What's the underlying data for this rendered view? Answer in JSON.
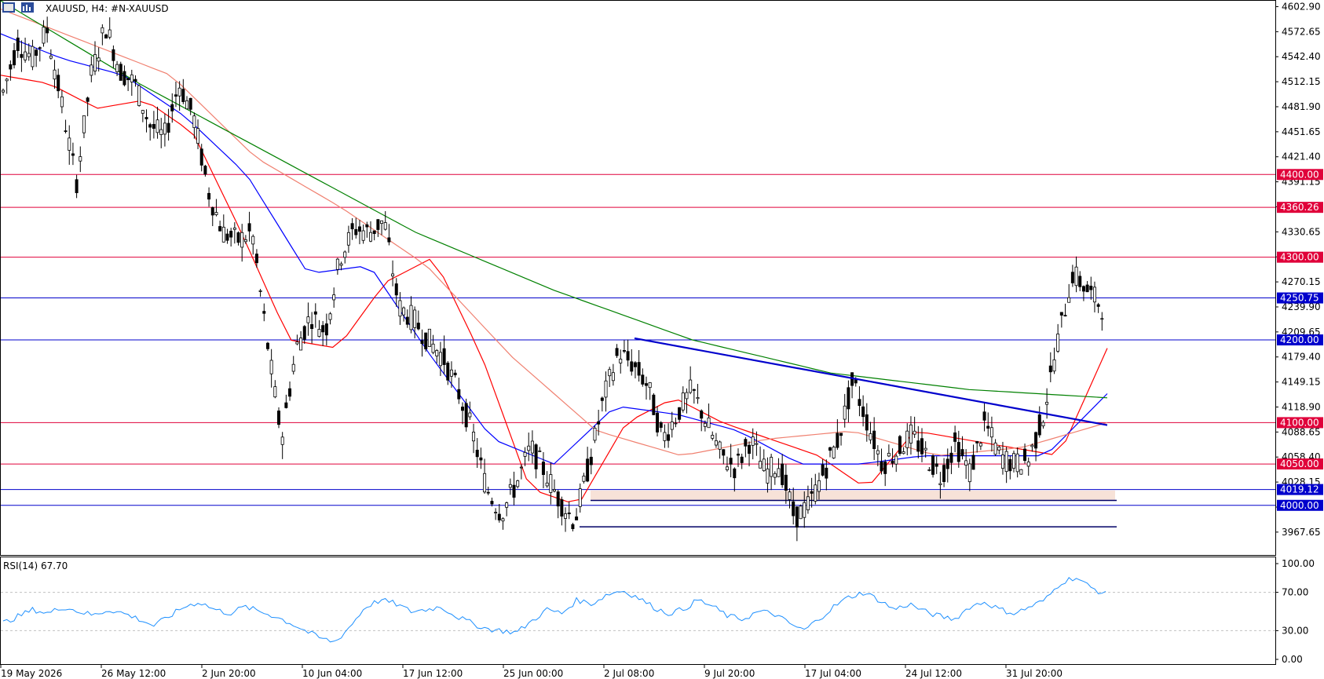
{
  "header": {
    "symbol": "XAUUSD",
    "timeframe": "H4:",
    "description": "#N-XAUUSD"
  },
  "rsi": {
    "label": "RSI(14) 67.70",
    "ticks": [
      "100.00",
      "70.00",
      "30.00",
      "0.00"
    ]
  },
  "chart_data": [
    {
      "type": "candlestick",
      "symbol": "XAUUSD",
      "timeframe": "H4",
      "ylim": [
        3940,
        4610
      ],
      "y_ticks": [
        4602.9,
        4572.65,
        4542.4,
        4512.15,
        4481.9,
        4451.65,
        4421.4,
        4391.15,
        4360.9,
        4330.65,
        4300.4,
        4270.15,
        4239.9,
        4209.65,
        4179.4,
        4149.15,
        4118.9,
        4088.65,
        4058.4,
        4028.15,
        3997.9,
        3967.65
      ],
      "x_ticks": [
        "19 May 2026",
        "26 May 12:00",
        "2 Jun 20:00",
        "10 Jun 04:00",
        "17 Jun 12:00",
        "25 Jun 00:00",
        "2 Jul 08:00",
        "9 Jul 20:00",
        "17 Jul 04:00",
        "24 Jul 12:00",
        "31 Jul 20:00"
      ],
      "price_path": [
        4500,
        4560,
        4540,
        4575,
        4485,
        4390,
        4520,
        4580,
        4525,
        4510,
        4460,
        4445,
        4510,
        4470,
        4380,
        4330,
        4320,
        4330,
        4200,
        4080,
        4190,
        4230,
        4210,
        4300,
        4335,
        4330,
        4345,
        4240,
        4225,
        4200,
        4180,
        4140,
        4090,
        4020,
        3990,
        4025,
        4070,
        4040,
        4005,
        3980,
        4050,
        4130,
        4185,
        4170,
        4145,
        4080,
        4110,
        4140,
        4100,
        4060,
        4045,
        4080,
        4040,
        4050,
        3985,
        4000,
        4040,
        4080,
        4150,
        4100,
        4050,
        4065,
        4085,
        4060,
        4035,
        4075,
        4040,
        4100,
        4060,
        4050,
        4055,
        4110,
        4200,
        4280,
        4260,
        4240
      ],
      "moving_averages": [
        {
          "color": "#ff0000",
          "path": [
            4520,
            4510,
            4480,
            4490,
            4450,
            4330,
            4200,
            4190,
            4270,
            4300,
            4180,
            4020,
            4000,
            4100,
            4130,
            4100,
            4080,
            4060,
            4020,
            4090,
            4080,
            4070,
            4060,
            4190
          ]
        },
        {
          "color": "#0000ff",
          "path": [
            4570,
            4540,
            4520,
            4470,
            4400,
            4280,
            4290,
            4180,
            4080,
            4050,
            4120,
            4110,
            4090,
            4050,
            4050,
            4060,
            4060,
            4060,
            4135
          ]
        },
        {
          "color": "#f08070",
          "path": [
            4600,
            4560,
            4520,
            4420,
            4360,
            4290,
            4180,
            4090,
            4060,
            4080,
            4090,
            4060,
            4070,
            4100
          ]
        },
        {
          "color": "#008000",
          "path": [
            4610,
            4510,
            4420,
            4330,
            4260,
            4200,
            4160,
            4140,
            4130
          ]
        }
      ],
      "price_levels": [
        {
          "value": 4400.0,
          "label": "4400.00",
          "color": "#e0003a"
        },
        {
          "value": 4360.26,
          "label": "4360.26",
          "color": "#e0003a"
        },
        {
          "value": 4300.0,
          "label": "4300.00",
          "color": "#e0003a"
        },
        {
          "value": 4250.75,
          "label": "4250.75",
          "color": "#0000cc"
        },
        {
          "value": 4200.0,
          "label": "4200.00",
          "color": "#0000cc"
        },
        {
          "value": 4100.0,
          "label": "4100.00",
          "color": "#e0003a"
        },
        {
          "value": 4050.0,
          "label": "4050.00",
          "color": "#e0003a"
        },
        {
          "value": 4019.12,
          "label": "4019.12",
          "color": "#0000cc"
        },
        {
          "value": 4000.0,
          "label": "4000.00",
          "color": "#0000cc"
        }
      ],
      "zone": {
        "from": 4006,
        "to": 4018,
        "color": "#f7e2d8"
      },
      "support_line": 3974,
      "trendline": {
        "from": 4202,
        "to": 4097,
        "color": "#0000cc"
      }
    },
    {
      "type": "line",
      "series": [
        {
          "name": "RSI(14)",
          "current": 67.7,
          "color": "#1e90ff"
        }
      ],
      "ylim": [
        0,
        100
      ],
      "levels": [
        70,
        30
      ],
      "path": [
        38,
        45,
        52,
        48,
        55,
        50,
        46,
        52,
        48,
        42,
        35,
        45,
        55,
        60,
        52,
        48,
        55,
        50,
        45,
        38,
        30,
        22,
        18,
        35,
        55,
        62,
        58,
        50,
        52,
        55,
        45,
        38,
        32,
        30,
        28,
        40,
        52,
        48,
        62,
        58,
        68,
        72,
        65,
        55,
        48,
        52,
        62,
        55,
        45,
        42,
        50,
        48,
        38,
        30,
        42,
        55,
        65,
        70,
        62,
        52,
        58,
        50,
        45,
        42,
        55,
        60,
        52,
        48,
        55,
        62,
        80,
        86,
        75,
        68
      ]
    }
  ]
}
